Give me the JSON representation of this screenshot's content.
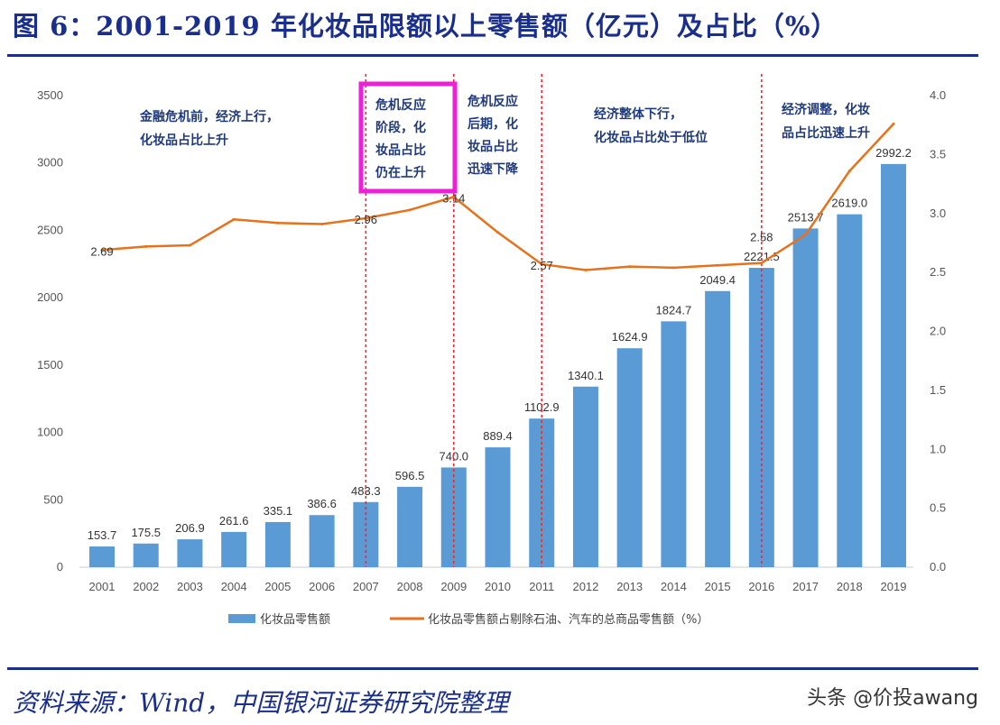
{
  "title": "图 6：2001-2019 年化妆品限额以上零售额（亿元）及占比（%）",
  "source": "资料来源：Wind，中国银河证券研究院整理",
  "watermark": "头条 @价投awang",
  "colors": {
    "bar": "#5b9bd5",
    "line": "#e8711c",
    "divider": "#e03030",
    "highlight": "#ee1fd8",
    "text": "#1f3a7a"
  },
  "chart_data": {
    "type": "bar+line",
    "categories": [
      "2001",
      "2002",
      "2003",
      "2004",
      "2005",
      "2006",
      "2007",
      "2008",
      "2009",
      "2010",
      "2011",
      "2012",
      "2013",
      "2014",
      "2015",
      "2016",
      "2017",
      "2018",
      "2019"
    ],
    "series": [
      {
        "name": "化妆品零售额",
        "type": "bar",
        "axis": "left",
        "values": [
          153.7,
          175.5,
          206.9,
          261.6,
          335.1,
          386.6,
          483.3,
          596.5,
          740.0,
          889.4,
          1102.9,
          1340.1,
          1624.9,
          1824.7,
          2049.4,
          2221.5,
          2513.7,
          2619.0,
          2992.2
        ],
        "labels": [
          "153.7",
          "175.5",
          "206.9",
          "261.6",
          "335.1",
          "386.6",
          "483.3",
          "596.5",
          "740.0",
          "889.4",
          "1102.9",
          "1340.1",
          "1624.9",
          "1824.7",
          "2049.4",
          "2221.5",
          "2513.7",
          "2619.0",
          "2992.2"
        ]
      },
      {
        "name": "化妆品零售额占剔除石油、汽车的总商品零售额（%）",
        "type": "line",
        "axis": "right",
        "values": [
          2.69,
          2.72,
          2.73,
          2.95,
          2.92,
          2.91,
          2.96,
          3.03,
          3.14,
          2.84,
          2.57,
          2.52,
          2.55,
          2.54,
          2.56,
          2.58,
          2.82,
          3.36,
          3.76
        ],
        "labels": {
          "2001": "2.69",
          "2007": "2.96",
          "2009": "3.14",
          "2011": "2.57",
          "2016": "2.58"
        }
      }
    ],
    "left_axis": {
      "range": [
        0,
        3500
      ],
      "ticks": [
        "0",
        "500",
        "1000",
        "1500",
        "2000",
        "2500",
        "3000",
        "3500"
      ]
    },
    "right_axis": {
      "range": [
        0,
        4.0
      ],
      "ticks": [
        "0.0",
        "0.5",
        "1.0",
        "1.5",
        "2.0",
        "2.5",
        "3.0",
        "3.5",
        "4.0"
      ]
    },
    "dividers": [
      "2007",
      "2009",
      "2011",
      "2016"
    ],
    "highlighted_annotation": 1,
    "annotations": [
      {
        "lines": [
          "金融危机前，经济上行，",
          "化妆品占比上升"
        ]
      },
      {
        "lines": [
          "危机反应",
          "阶段，化",
          "妆品占比",
          "仍在上升"
        ]
      },
      {
        "lines": [
          "危机反应",
          "后期，化",
          "妆品占比",
          "迅速下降"
        ]
      },
      {
        "lines": [
          "经济整体下行，",
          "化妆品占比处于低位"
        ]
      },
      {
        "lines": [
          "经济调整，化妆",
          "品占比迅速上升"
        ]
      }
    ],
    "legend": "bottom",
    "grid": false
  }
}
